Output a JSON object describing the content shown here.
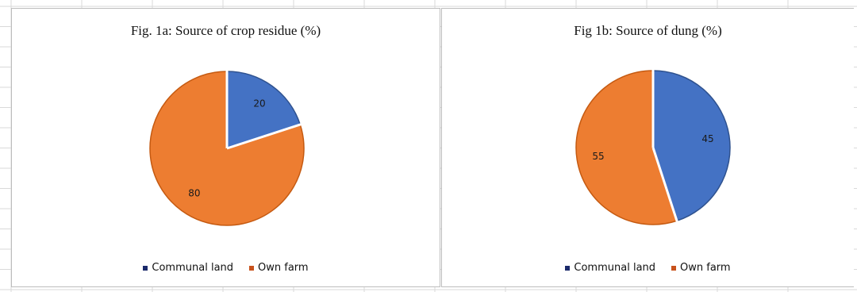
{
  "colors": {
    "communal_land_marker": "#1b2a6b",
    "own_farm_marker": "#c8521c",
    "blue_slice": "#4472c4",
    "blue_slice_edge": "#2f528f",
    "orange_slice": "#ed7d31",
    "orange_slice_edge": "#c55a11"
  },
  "chart_data": [
    {
      "type": "pie",
      "title": "Fig. 1a: Source of crop residue (%)",
      "categories": [
        "Communal land",
        "Own farm"
      ],
      "values": [
        20,
        80
      ],
      "data_labels": [
        "20",
        "80"
      ],
      "start_angle_deg": 0,
      "direction": "clockwise",
      "legend_position": "bottom",
      "legend": [
        "Communal land",
        "Own farm"
      ]
    },
    {
      "type": "pie",
      "title": "Fig 1b: Source of  dung (%)",
      "categories": [
        "Communal land",
        "Own farm"
      ],
      "values": [
        45,
        55
      ],
      "data_labels": [
        "45",
        "55"
      ],
      "start_angle_deg": 0,
      "direction": "clockwise",
      "legend_position": "bottom",
      "legend": [
        "Communal land",
        "Own farm"
      ]
    }
  ]
}
